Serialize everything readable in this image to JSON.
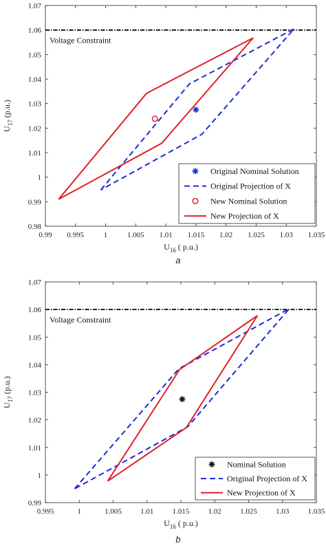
{
  "chart_data": [
    {
      "type": "line",
      "caption": "a",
      "xlabel": "U16 ( p.u.)",
      "ylabel": "U17 (p.u.)",
      "xlim": [
        0.99,
        1.035
      ],
      "ylim": [
        0.98,
        1.07
      ],
      "xticks": [
        "0.99",
        "0.995",
        "1",
        "1.005",
        "1.01",
        "1.015",
        "1.02",
        "1.025",
        "1.03",
        "1.035"
      ],
      "yticks": [
        "0.98",
        "0.99",
        "1",
        "1.01",
        "1.02",
        "1.03",
        "1.04",
        "1.05",
        "1.06",
        "1.07"
      ],
      "constraint": {
        "y": 1.06,
        "label": "Voltage Constraint"
      },
      "legend_position": "bottom-right",
      "series": [
        {
          "name": "Original Nominal Solution",
          "kind": "marker",
          "marker": "asterisk",
          "color": "#1a2bd6",
          "points": [
            [
              1.015,
              1.0275
            ]
          ]
        },
        {
          "name": "Original Projection of X",
          "kind": "line",
          "style": "dashed",
          "color": "#1a2bd6",
          "points": [
            [
              0.9992,
              0.9948
            ],
            [
              1.0139,
              1.038
            ],
            [
              1.0313,
              1.0605
            ],
            [
              1.016,
              1.0175
            ],
            [
              0.9992,
              0.9948
            ]
          ]
        },
        {
          "name": "New Nominal Solution",
          "kind": "marker",
          "marker": "circle",
          "color": "#e01f26",
          "points": [
            [
              1.0082,
              1.0238
            ]
          ]
        },
        {
          "name": "New Projection of X",
          "kind": "line",
          "style": "solid",
          "color": "#e01f26",
          "points": [
            [
              0.9922,
              0.991
            ],
            [
              1.0068,
              1.0342
            ],
            [
              1.0245,
              1.0568
            ],
            [
              1.0093,
              1.0138
            ],
            [
              0.9922,
              0.991
            ]
          ]
        }
      ]
    },
    {
      "type": "line",
      "caption": "b",
      "xlabel": "U16 ( p.u.)",
      "ylabel": "U17 (p.u.)",
      "xlim": [
        0.995,
        1.035
      ],
      "ylim": [
        0.99,
        1.07
      ],
      "xticks": [
        "0.995",
        "1",
        "1.005",
        "1.01",
        "1.015",
        "1.02",
        "1.025",
        "1.03",
        "1.035"
      ],
      "yticks": [
        "0.99",
        "1",
        "1.01",
        "1.02",
        "1.03",
        "1.04",
        "1.05",
        "1.06",
        "1.07"
      ],
      "constraint": {
        "y": 1.06,
        "label": "Voltage Constraint"
      },
      "legend_position": "bottom-right",
      "series": [
        {
          "name": "Nominal Solution",
          "kind": "marker",
          "marker": "asterisk",
          "color": "#111111",
          "points": [
            [
              1.0152,
              1.0275
            ]
          ]
        },
        {
          "name": "Original Projection of X",
          "kind": "line",
          "style": "dashed",
          "color": "#1a2bd6",
          "points": [
            [
              0.9993,
              0.995
            ],
            [
              1.0147,
              1.0385
            ],
            [
              1.031,
              1.0603
            ],
            [
              1.016,
              1.0175
            ],
            [
              0.9993,
              0.995
            ]
          ]
        },
        {
          "name": "New Projection of X",
          "kind": "line",
          "style": "solid",
          "color": "#e01f26",
          "points": [
            [
              1.0042,
              0.9978
            ],
            [
              1.0148,
              1.0382
            ],
            [
              1.0263,
              1.0578
            ],
            [
              1.0158,
              1.0172
            ],
            [
              1.0042,
              0.9978
            ]
          ]
        }
      ]
    }
  ]
}
